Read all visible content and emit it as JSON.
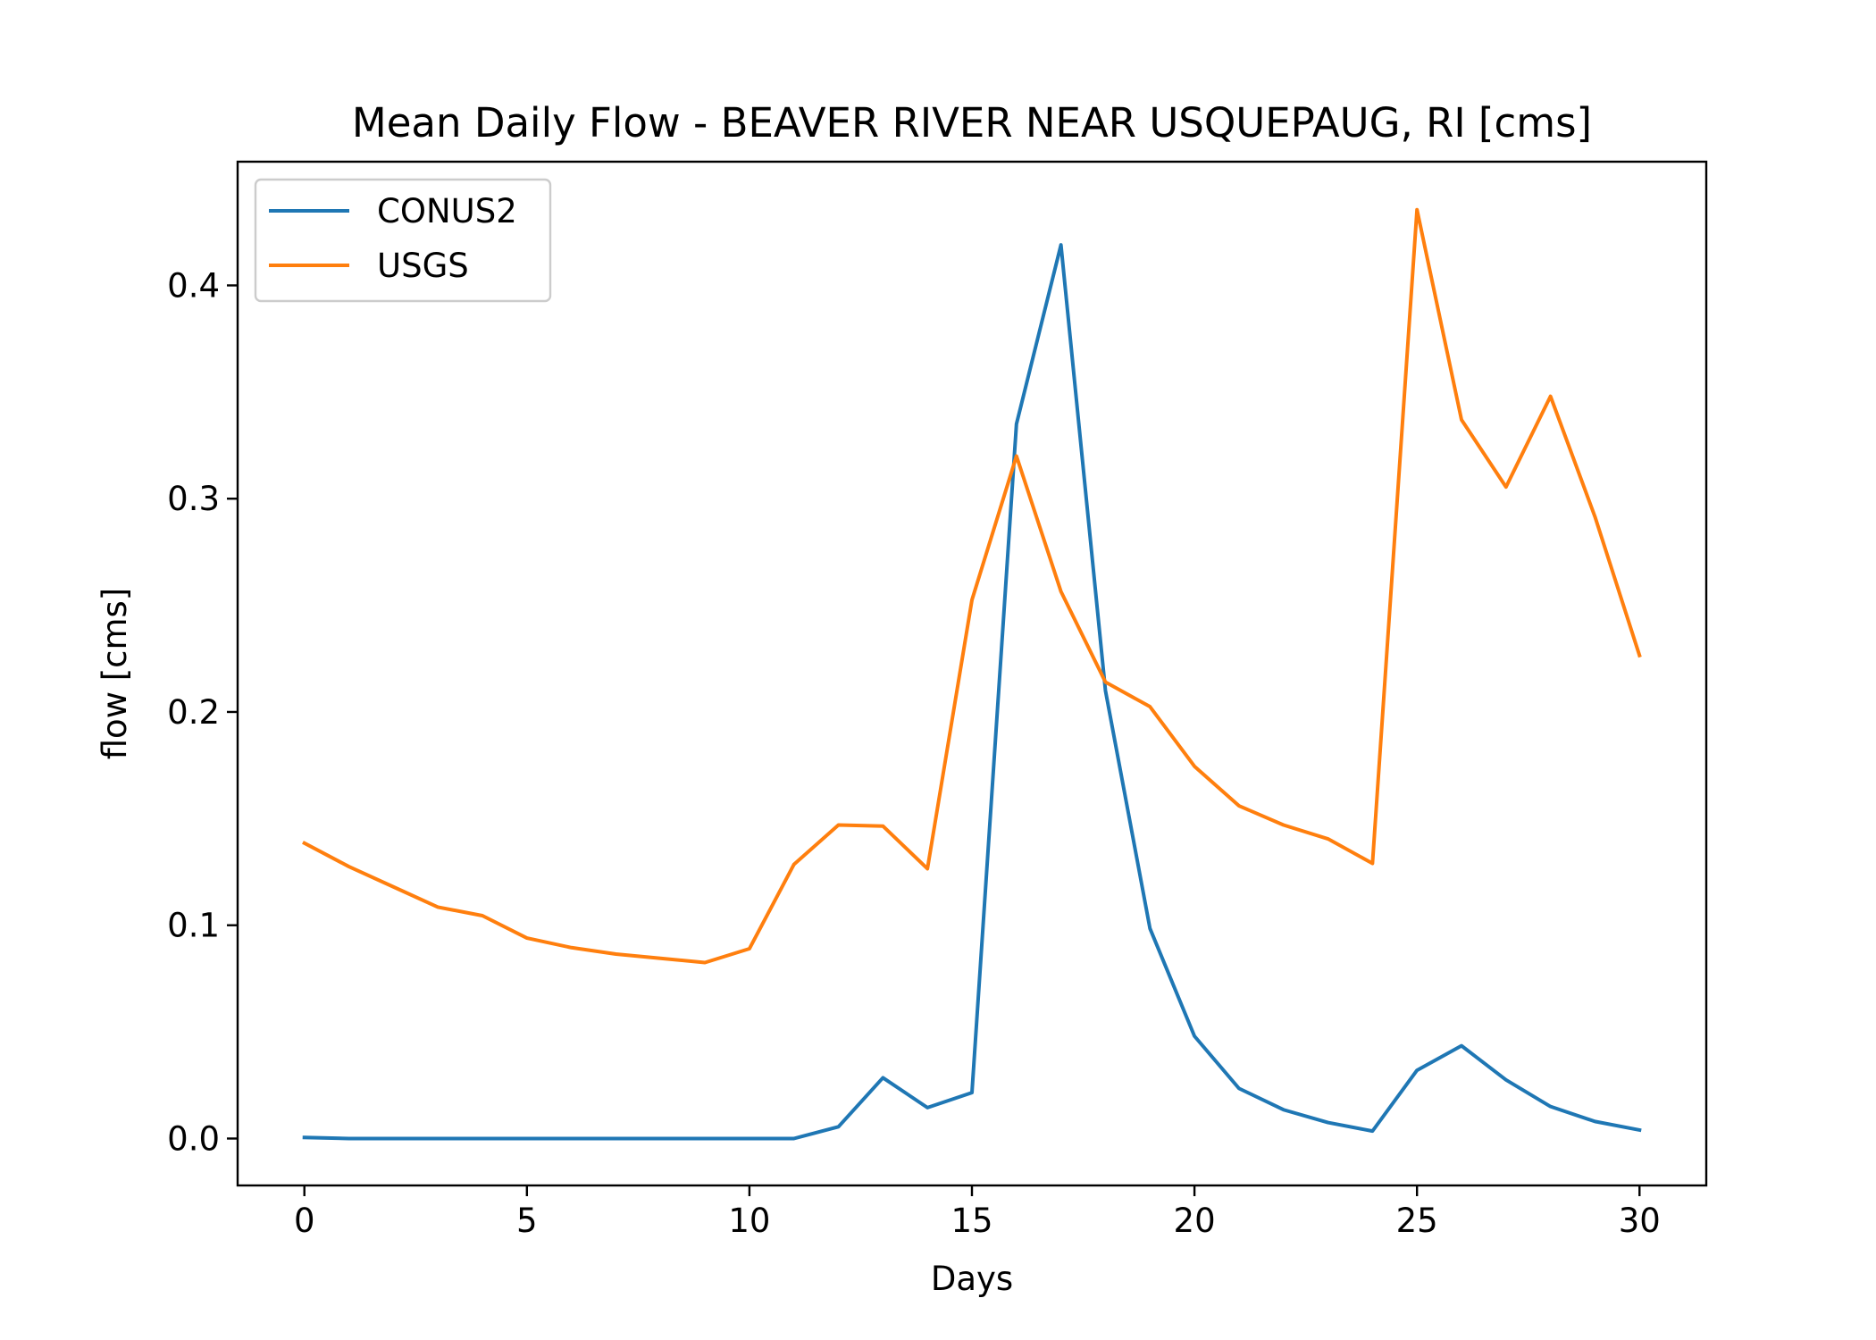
{
  "chart_data": {
    "type": "line",
    "title": "Mean Daily Flow - BEAVER RIVER NEAR USQUEPAUG, RI [cms]",
    "xlabel": "Days",
    "ylabel": "flow [cms]",
    "xlim": [
      -1.5,
      31.5
    ],
    "ylim": [
      -0.022,
      0.458
    ],
    "xticks": [
      0,
      5,
      10,
      15,
      20,
      25,
      30
    ],
    "yticks": [
      0.0,
      0.1,
      0.2,
      0.3,
      0.4
    ],
    "xtick_labels": [
      "0",
      "5",
      "10",
      "15",
      "20",
      "25",
      "30"
    ],
    "ytick_labels": [
      "0.0",
      "0.1",
      "0.2",
      "0.3",
      "0.4"
    ],
    "grid": false,
    "legend_position": "upper-left",
    "x": [
      0,
      1,
      2,
      3,
      4,
      5,
      6,
      7,
      8,
      9,
      10,
      11,
      12,
      13,
      14,
      15,
      16,
      17,
      18,
      19,
      20,
      21,
      22,
      23,
      24,
      25,
      26,
      27,
      28,
      29,
      30
    ],
    "series": [
      {
        "name": "CONUS2",
        "color": "#1f77b4",
        "values": [
          0.0005,
          0.0,
          0.0,
          0.0,
          0.0,
          0.0,
          0.0,
          0.0,
          0.0,
          0.0,
          0.0,
          0.0,
          0.0055,
          0.0285,
          0.0145,
          0.0215,
          0.335,
          0.419,
          0.21,
          0.0985,
          0.048,
          0.0235,
          0.0135,
          0.0075,
          0.0035,
          0.032,
          0.0435,
          0.0275,
          0.015,
          0.008,
          0.004
        ]
      },
      {
        "name": "USGS",
        "color": "#ff7f0e",
        "values": [
          0.1385,
          0.1275,
          0.118,
          0.1085,
          0.1045,
          0.094,
          0.0895,
          0.0865,
          0.0845,
          0.0825,
          0.089,
          0.1285,
          0.147,
          0.1465,
          0.1265,
          0.2525,
          0.32,
          0.2565,
          0.214,
          0.2025,
          0.1745,
          0.156,
          0.147,
          0.1405,
          0.129,
          0.4355,
          0.337,
          0.3055,
          0.348,
          0.2915,
          0.2265
        ]
      }
    ]
  }
}
